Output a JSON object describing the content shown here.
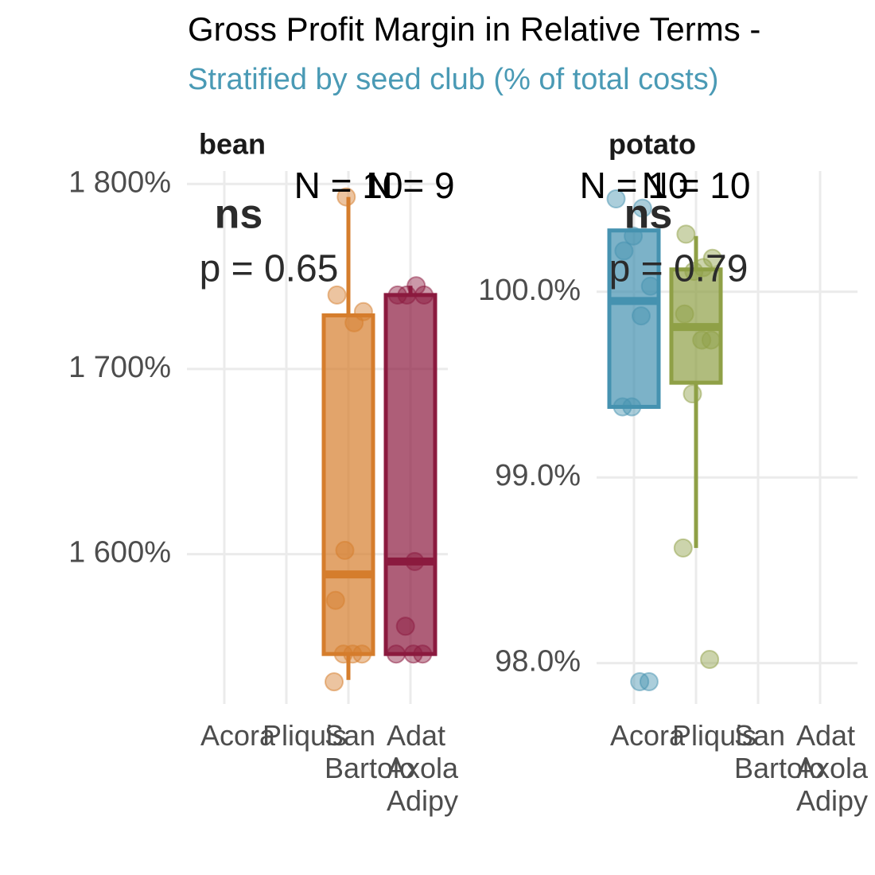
{
  "title": "Gross Profit Margin in Relative Terms -",
  "subtitle": "Stratified by seed club (% of total costs)",
  "chart_data": [
    {
      "type": "box",
      "facet": "bean",
      "categories": [
        "Acora",
        "Pliquis",
        "San Bartolo",
        "Adat Axola Adipy"
      ],
      "ylim": [
        1519,
        1807
      ],
      "yticks": [
        {
          "value": 1600,
          "label": "1 600%"
        },
        {
          "value": 1700,
          "label": "1 700%"
        },
        {
          "value": 1800,
          "label": "1 800%"
        }
      ],
      "signif": "ns",
      "p_label": "p = 0.65",
      "boxes": [
        null,
        null,
        {
          "color": "#d57d2c",
          "low": 1532,
          "q1": 1546,
          "median": 1589,
          "q3": 1729,
          "high": 1793,
          "n_label": "N = 10",
          "points": [
            1793,
            1740,
            1731,
            1725,
            1602,
            1575,
            1546,
            1546,
            1546,
            1531
          ]
        },
        {
          "color": "#8b1a3f",
          "low": 1546,
          "q1": 1546,
          "median": 1596,
          "q3": 1740,
          "high": 1745,
          "n_label": "N = 9",
          "points": [
            1745,
            1740,
            1740,
            1740,
            1596,
            1561,
            1546,
            1546,
            1546
          ]
        }
      ]
    },
    {
      "type": "box",
      "facet": "potato",
      "categories": [
        "Acora",
        "Pliquis",
        "San Bartolo",
        "Adat Axola Adipy"
      ],
      "ylim": [
        97.78,
        100.65
      ],
      "yticks": [
        {
          "value": 98,
          "label": "98.0%"
        },
        {
          "value": 99,
          "label": "99.0%"
        },
        {
          "value": 100,
          "label": "100.0%"
        }
      ],
      "signif": "ns",
      "p_label": "p = 0.79",
      "boxes": [
        {
          "color": "#4592b0",
          "low": 99.38,
          "q1": 99.38,
          "median": 99.95,
          "q3": 100.33,
          "high": 100.33,
          "n_label": "N = 10",
          "points": [
            100.5,
            100.45,
            100.3,
            100.22,
            100.03,
            99.87,
            99.38,
            99.38,
            97.9,
            97.9
          ]
        },
        {
          "color": "#8fa046",
          "low": 98.62,
          "q1": 99.51,
          "median": 99.81,
          "q3": 100.12,
          "high": 100.3,
          "n_label": "N = 10",
          "points": [
            100.31,
            100.18,
            100.13,
            100.11,
            99.88,
            99.74,
            99.74,
            99.45,
            98.62,
            98.02
          ]
        },
        null,
        null
      ]
    }
  ]
}
